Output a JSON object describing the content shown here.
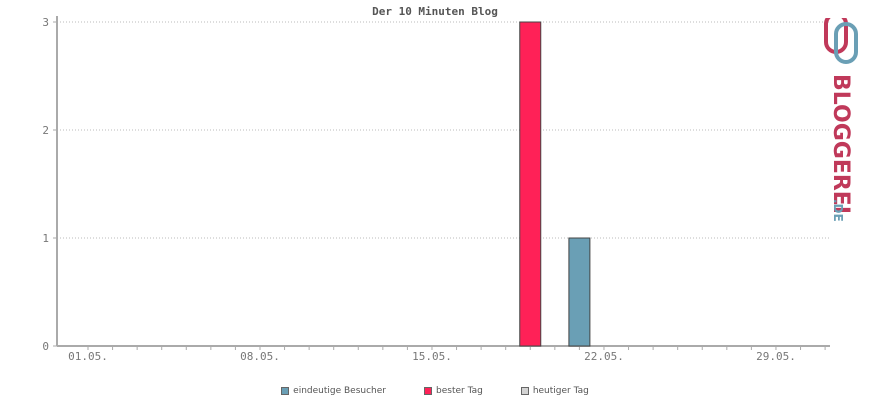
{
  "chart_data": {
    "type": "bar",
    "title": "Der 10 Minuten Blog",
    "x_tick_labels": [
      "01.05.",
      "08.05.",
      "15.05.",
      "22.05.",
      "29.05."
    ],
    "y_tick_labels": [
      "0",
      "1",
      "2",
      "3"
    ],
    "ylim": [
      0,
      3
    ],
    "grid": true,
    "legend_position": "bottom",
    "series": [
      {
        "name": "eindeutige Besucher",
        "color": "#6a9fb5",
        "points": [
          {
            "x": "21.05.",
            "y": 1
          }
        ]
      },
      {
        "name": "bester Tag",
        "color": "#ff2157",
        "points": [
          {
            "x": "19.05.",
            "y": 3
          }
        ]
      },
      {
        "name": "heutiger Tag",
        "color": "#d3d3d3",
        "points": []
      }
    ]
  },
  "logo": {
    "main": "BLOGGEREI",
    "suffix": ".DE",
    "color_main": "#c0395a",
    "color_suffix": "#6a9fb5"
  }
}
